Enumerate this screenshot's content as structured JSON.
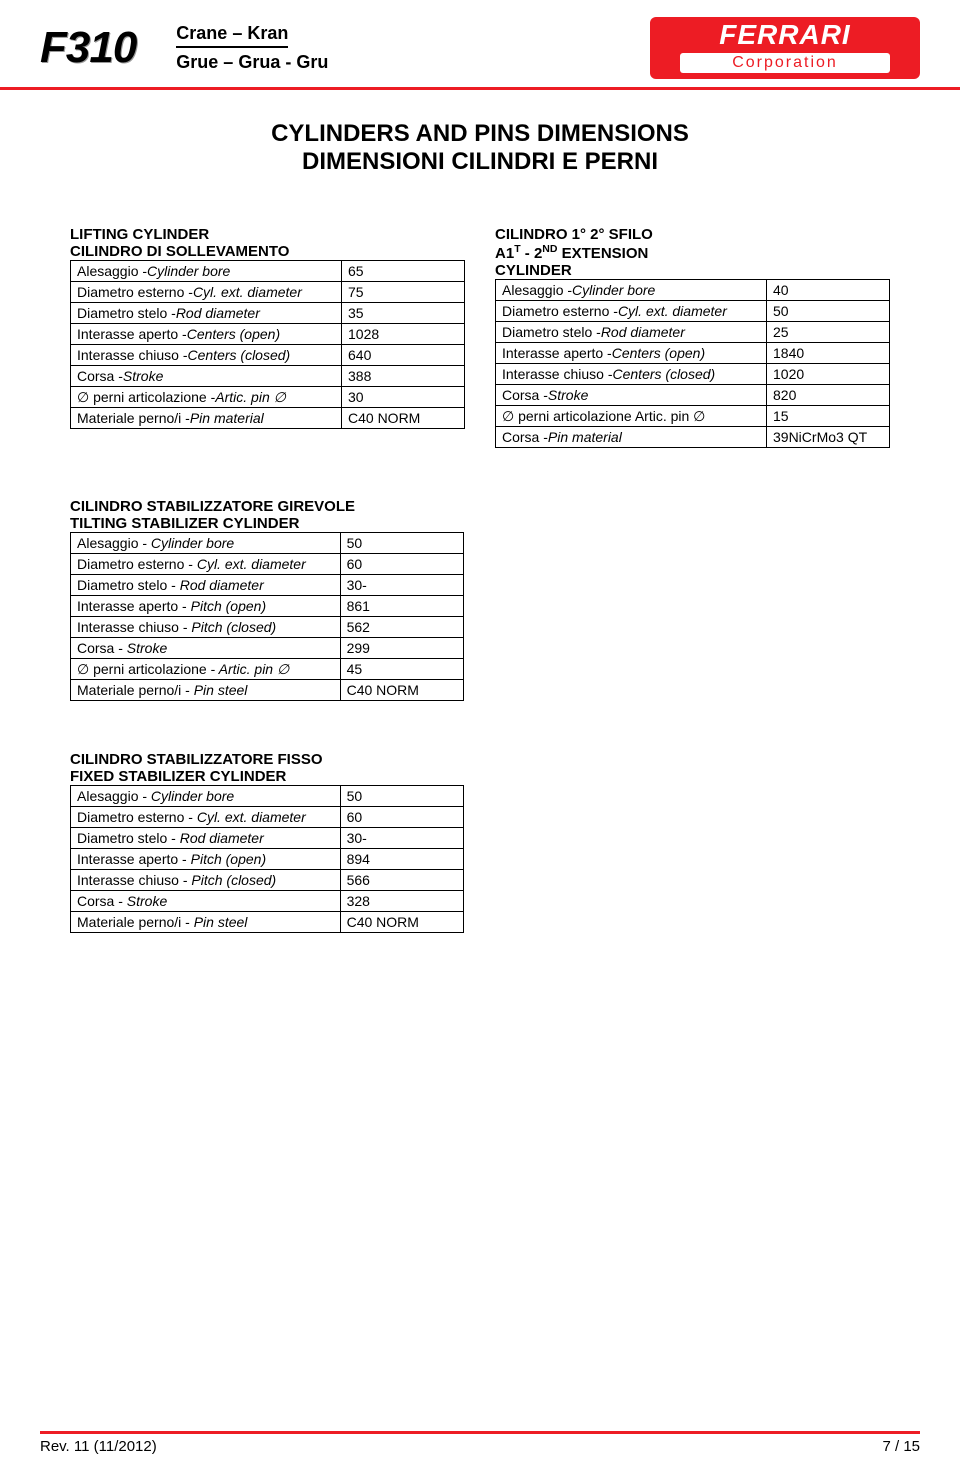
{
  "header": {
    "model": "F310",
    "line1": "Crane – Kran",
    "line2": "Grue – Grua - Gru",
    "logo_brand": "FERRARI",
    "logo_corp": "Corporation",
    "logo_bg": "#ed1c24",
    "accent_color": "#ed1c24"
  },
  "title": {
    "line1": "CYLINDERS AND PINS DIMENSIONS",
    "line2": "DIMENSIONI CILINDRI E PERNI"
  },
  "lifting": {
    "heading1": "LIFTING CYLINDER",
    "heading2": "CILINDRO DI SOLLEVAMENTO",
    "rows": [
      {
        "label": "Alesaggio -Cylinder bore",
        "value": "65"
      },
      {
        "label": "Diametro esterno -Cyl. ext. diameter",
        "value": "75"
      },
      {
        "label": "Diametro stelo -Rod diameter",
        "value": "35"
      },
      {
        "label": "Interasse aperto -Centers (open)",
        "value": "1028"
      },
      {
        "label": "Interasse chiuso -Centers (closed)",
        "value": "640"
      },
      {
        "label": "Corsa -Stroke",
        "value": "388"
      },
      {
        "label": "∅ perni articolazione -Artic. pin ∅",
        "value": "30"
      },
      {
        "label": "Materiale perno/i -Pin material",
        "value": "C40 NORM"
      }
    ]
  },
  "extension": {
    "heading1": "CILINDRO 1° 2° SFILO",
    "heading2_html": "A1<sup>T</sup> - 2<sup>ND</sup>  EXTENSION",
    "heading3": "CYLINDER",
    "rows": [
      {
        "label": "Alesaggio -Cylinder bore",
        "value": "40"
      },
      {
        "label": "Diametro esterno -Cyl. ext. diameter",
        "value": "50"
      },
      {
        "label": "Diametro stelo -Rod diameter",
        "value": "25"
      },
      {
        "label": "Interasse aperto -Centers (open)",
        "value": "1840"
      },
      {
        "label": "Interasse chiuso -Centers (closed)",
        "value": "1020"
      },
      {
        "label": "Corsa -Stroke",
        "value": "820"
      },
      {
        "label": "∅ perni articolazione Artic. pin ∅",
        "value": "15"
      },
      {
        "label": "Corsa -Pin material",
        "value": "39NiCrMo3  QT"
      }
    ]
  },
  "tilting": {
    "heading1": "CILINDRO STABILIZZATORE GIREVOLE",
    "heading2": "TILTING STABILIZER CYLINDER",
    "rows": [
      {
        "label": "Alesaggio - Cylinder bore",
        "value": "50"
      },
      {
        "label": "Diametro esterno - Cyl. ext. diameter",
        "value": "60"
      },
      {
        "label": "Diametro stelo - Rod diameter",
        "value": "30-"
      },
      {
        "label": "Interasse aperto - Pitch (open)",
        "value": "861"
      },
      {
        "label": "Interasse chiuso - Pitch (closed)",
        "value": "562"
      },
      {
        "label": "Corsa - Stroke",
        "value": "299"
      },
      {
        "label": "∅ perni articolazione - Artic. pin ∅",
        "value": "45"
      },
      {
        "label": "Materiale perno/i - Pin steel",
        "value": "C40 NORM"
      }
    ]
  },
  "fixed": {
    "heading1": "CILINDRO STABILIZZATORE FISSO",
    "heading2": "FIXED STABILIZER CYLINDER",
    "rows": [
      {
        "label": "Alesaggio - Cylinder bore",
        "value": "50"
      },
      {
        "label": "Diametro esterno - Cyl. ext. diameter",
        "value": "60"
      },
      {
        "label": "Diametro stelo - Rod diameter",
        "value": "30-"
      },
      {
        "label": "Interasse aperto - Pitch (open)",
        "value": "894"
      },
      {
        "label": "Interasse chiuso - Pitch (closed)",
        "value": "566"
      },
      {
        "label": "Corsa - Stroke",
        "value": "328"
      },
      {
        "label": "Materiale perno/i - Pin steel",
        "value": "C40 NORM"
      }
    ]
  },
  "footer": {
    "rev": "Rev. 11  (11/2012)",
    "page": "7 / 15"
  }
}
